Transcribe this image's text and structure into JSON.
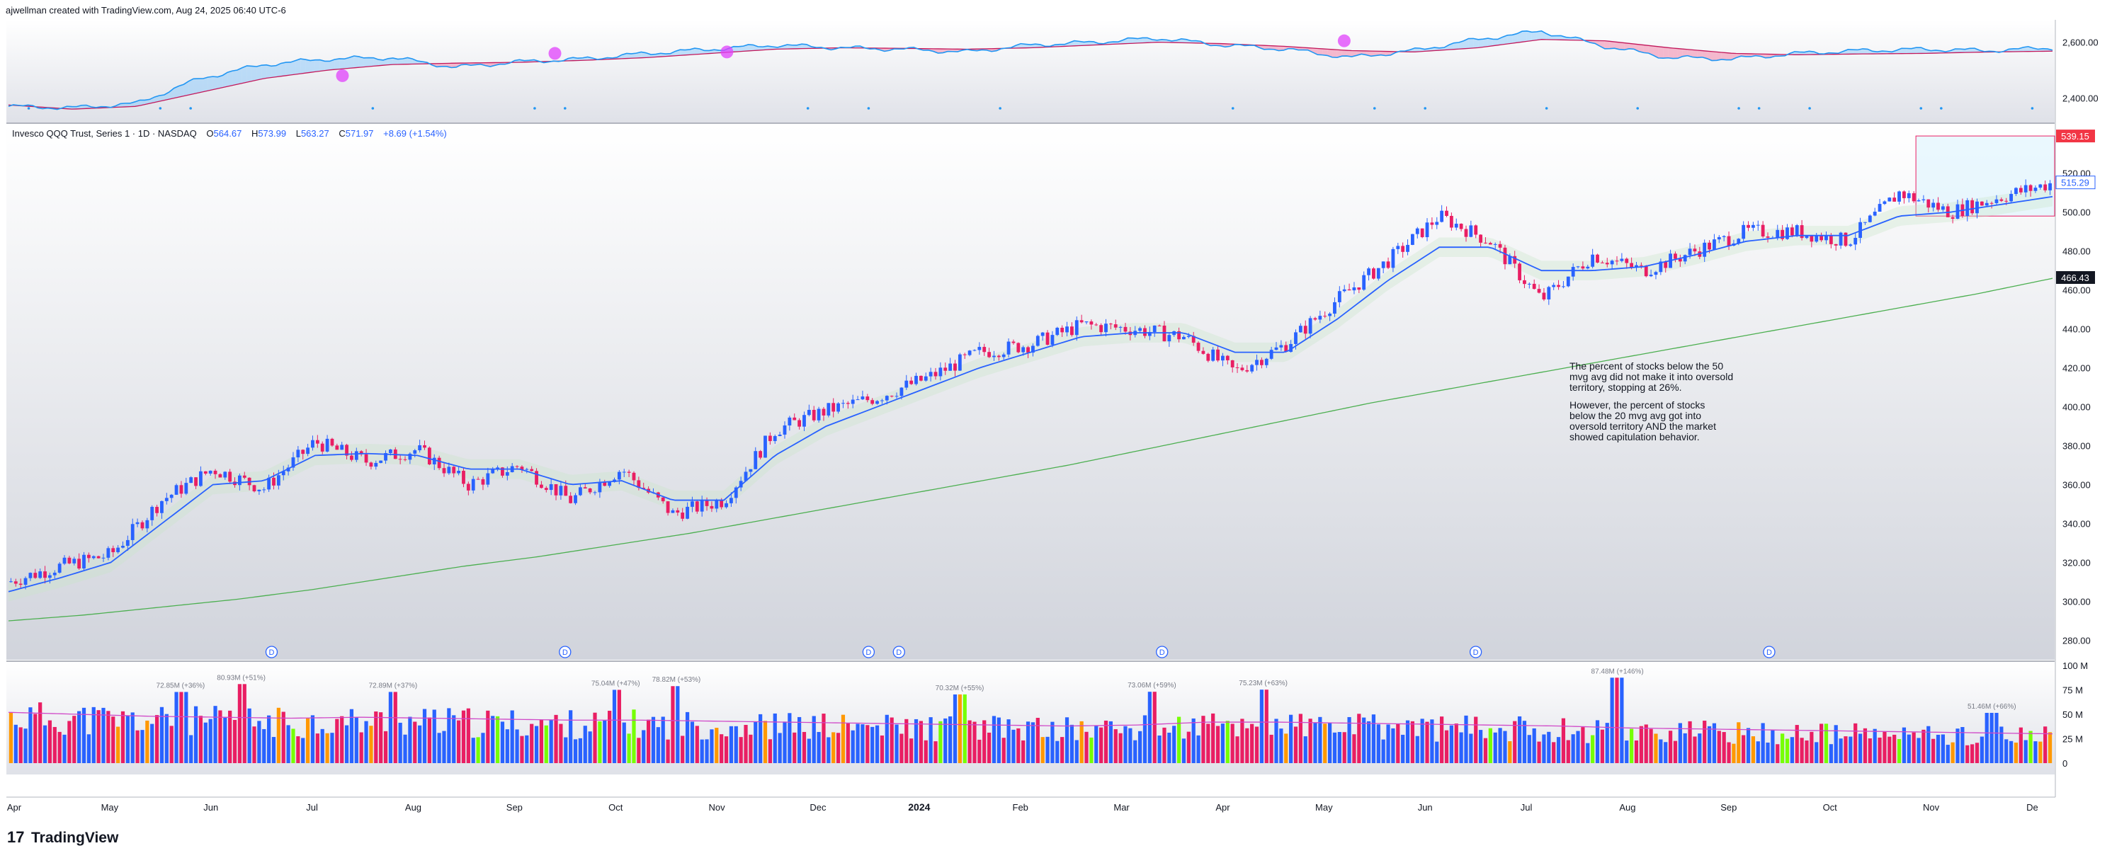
{
  "header": {
    "credit": "ajwellman created with TradingView.com, Aug 24, 2025 06:40 UTC-6"
  },
  "legend": {
    "symbol": "Invesco QQQ Trust, Series 1 · 1D · NASDAQ",
    "o_label": "O",
    "o_value": "564.67",
    "h_label": "H",
    "h_value": "573.99",
    "l_label": "L",
    "l_value": "563.27",
    "c_label": "C",
    "c_value": "571.97",
    "change": "+8.69 (+1.54%)"
  },
  "annotation": {
    "lines": [
      "The percent of stocks below the 50",
      "mvg avg did not make it into oversold",
      "territory, stopping at 26%.",
      "",
      "However, the percent of stocks",
      "below the 20 mvg avg got into",
      "oversold territory AND the market",
      "showed capitulation behavior."
    ]
  },
  "price_badges": {
    "top": "539.15",
    "current": "515.29",
    "ma200": "466.43"
  },
  "volume_annotations": [
    "72.85M (+36%)",
    "80.93M (+51%)",
    "72.89M (+37%)",
    "75.04M (+47%)",
    "78.82M (+53%)",
    "70.32M (+55%)",
    "73.06M (+59%)",
    "75.23M (+63%)",
    "87.48M (+146%)",
    "51.46M (+66%)"
  ],
  "dividend_marker": "D",
  "time_labels": [
    "Apr",
    "May",
    "Jun",
    "Jul",
    "Aug",
    "Sep",
    "Oct",
    "Nov",
    "Dec",
    "2024",
    "Feb",
    "Mar",
    "Apr",
    "May",
    "Jun",
    "Jul",
    "Aug",
    "Sep",
    "Oct",
    "Nov",
    "De"
  ],
  "footer": {
    "brand": "TradingView",
    "logo": "tradingview-logo"
  },
  "colors": {
    "up": "#2962ff",
    "down": "#e91e63",
    "ma_fast": "#2962ff",
    "ma_slow": "#4caf50",
    "osc_pos": "#2196f3",
    "osc_neg": "#e040fb",
    "vol_green": "#76ff03",
    "vol_orange": "#ff9800",
    "vol_avg": "#d048c8"
  },
  "chart_data": [
    {
      "type": "line",
      "name": "breadth-oscillator",
      "y_ticks": [
        "2,600.00",
        "2,400.00"
      ],
      "ylim": [
        2330,
        2660
      ],
      "x_months": [
        "Apr 2023",
        "May",
        "Jun",
        "Jul",
        "Aug",
        "Sep",
        "Oct",
        "Nov",
        "Dec",
        "Jan 2024",
        "Feb",
        "Mar",
        "Apr",
        "May",
        "Jun",
        "Jul",
        "Aug",
        "Sep",
        "Oct",
        "Nov",
        "Dec"
      ],
      "line": [
        2370,
        2365,
        2380,
        2470,
        2520,
        2540,
        2545,
        2510,
        2530,
        2540,
        2560,
        2575,
        2590,
        2580,
        2575,
        2565,
        2590,
        2600,
        2615,
        2590,
        2575,
        2545,
        2570,
        2610,
        2640,
        2585,
        2545,
        2540,
        2560,
        2570,
        2575,
        2570,
        2580
      ],
      "signal": [
        2375,
        2360,
        2370,
        2420,
        2470,
        2500,
        2520,
        2525,
        2528,
        2535,
        2545,
        2560,
        2575,
        2580,
        2578,
        2575,
        2580,
        2590,
        2600,
        2595,
        2585,
        2570,
        2565,
        2580,
        2610,
        2605,
        2580,
        2560,
        2555,
        2558,
        2560,
        2565,
        2568
      ],
      "highlight_points": [
        [
          3.3,
          2480
        ],
        [
          5.4,
          2560
        ],
        [
          7.1,
          2565
        ],
        [
          13.2,
          2605
        ]
      ]
    },
    {
      "type": "candlestick",
      "name": "qqq-price",
      "y_ticks": [
        "520.00",
        "500.00",
        "480.00",
        "460.00",
        "440.00",
        "420.00",
        "400.00",
        "380.00",
        "360.00",
        "340.00",
        "320.00",
        "300.00",
        "280.00"
      ],
      "ylim": [
        270,
        545
      ],
      "x_months": [
        "Apr 2023",
        "May",
        "Jun",
        "Jul",
        "Aug",
        "Sep",
        "Oct",
        "Nov",
        "Dec",
        "Jan 2024",
        "Feb",
        "Mar",
        "Apr",
        "May",
        "Jun",
        "Jul",
        "Aug",
        "Sep",
        "Oct",
        "Nov",
        "Dec"
      ],
      "close_anchors": [
        310,
        318,
        324,
        352,
        368,
        358,
        382,
        372,
        378,
        360,
        370,
        352,
        368,
        345,
        352,
        388,
        398,
        405,
        415,
        428,
        432,
        442,
        440,
        436,
        418,
        432,
        455,
        475,
        498,
        485,
        455,
        478,
        470,
        480,
        490,
        490,
        485,
        510,
        500,
        508,
        515
      ],
      "ma20_anchors": [
        305,
        312,
        320,
        340,
        360,
        362,
        375,
        376,
        375,
        368,
        368,
        360,
        362,
        352,
        352,
        375,
        390,
        400,
        410,
        420,
        428,
        436,
        438,
        438,
        428,
        428,
        445,
        465,
        482,
        482,
        470,
        470,
        472,
        478,
        485,
        488,
        488,
        498,
        500,
        504,
        508
      ],
      "ma200_anchors": [
        290,
        293,
        297,
        301,
        306,
        312,
        318,
        323,
        329,
        335,
        342,
        349,
        356,
        363,
        370,
        378,
        386,
        394,
        402,
        409,
        416,
        423,
        430,
        437,
        444,
        451,
        458,
        466
      ],
      "dividend_months": [
        2.6,
        5.5,
        8.5,
        8.8,
        11.4,
        14.5,
        17.4
      ],
      "channel_high": 539.15,
      "channel_low": 498
    },
    {
      "type": "bar",
      "name": "volume",
      "y_ticks": [
        "100 M",
        "75 M",
        "50 M",
        "25 M",
        "0"
      ],
      "ylim": [
        0,
        100
      ],
      "avg_level": [
        52,
        50,
        48,
        47,
        46,
        47,
        46,
        45,
        44,
        44,
        43,
        42,
        41,
        40,
        39,
        38,
        39,
        42,
        42,
        41,
        40,
        39,
        38,
        36,
        35,
        34,
        33,
        32,
        31,
        30
      ],
      "spikes": [
        [
          1.7,
          72.85
        ],
        [
          2.3,
          80.93
        ],
        [
          3.8,
          72.89
        ],
        [
          6.0,
          75.04
        ],
        [
          6.6,
          78.82
        ],
        [
          9.4,
          70.32
        ],
        [
          11.3,
          73.06
        ],
        [
          12.4,
          75.23
        ],
        [
          15.9,
          87.48
        ],
        [
          19.6,
          51.46
        ]
      ]
    }
  ]
}
